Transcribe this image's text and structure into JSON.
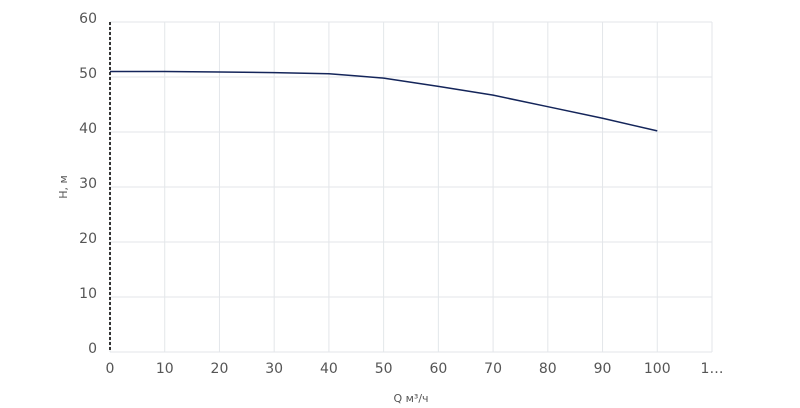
{
  "chart_data": {
    "type": "line",
    "x_label": "Q м³/ч",
    "y_label": "Н, м",
    "x": [
      0,
      10,
      20,
      30,
      40,
      45,
      50,
      60,
      70,
      80,
      90,
      100
    ],
    "series": [
      {
        "color": "#14255a",
        "values": [
          51,
          51,
          50.9,
          50.8,
          50.6,
          50.2,
          49.8,
          48.3,
          46.7,
          44.6,
          42.5,
          40.2
        ]
      }
    ],
    "xlim": [
      0,
      110
    ],
    "xticks": [
      0,
      10,
      20,
      30,
      40,
      50,
      60,
      70,
      80,
      90,
      100,
      {
        "value": 110,
        "label": "1…"
      }
    ],
    "ylim": [
      0,
      60
    ],
    "yticks": [
      0,
      10,
      20,
      30,
      40,
      50,
      60
    ],
    "grid": true
  }
}
